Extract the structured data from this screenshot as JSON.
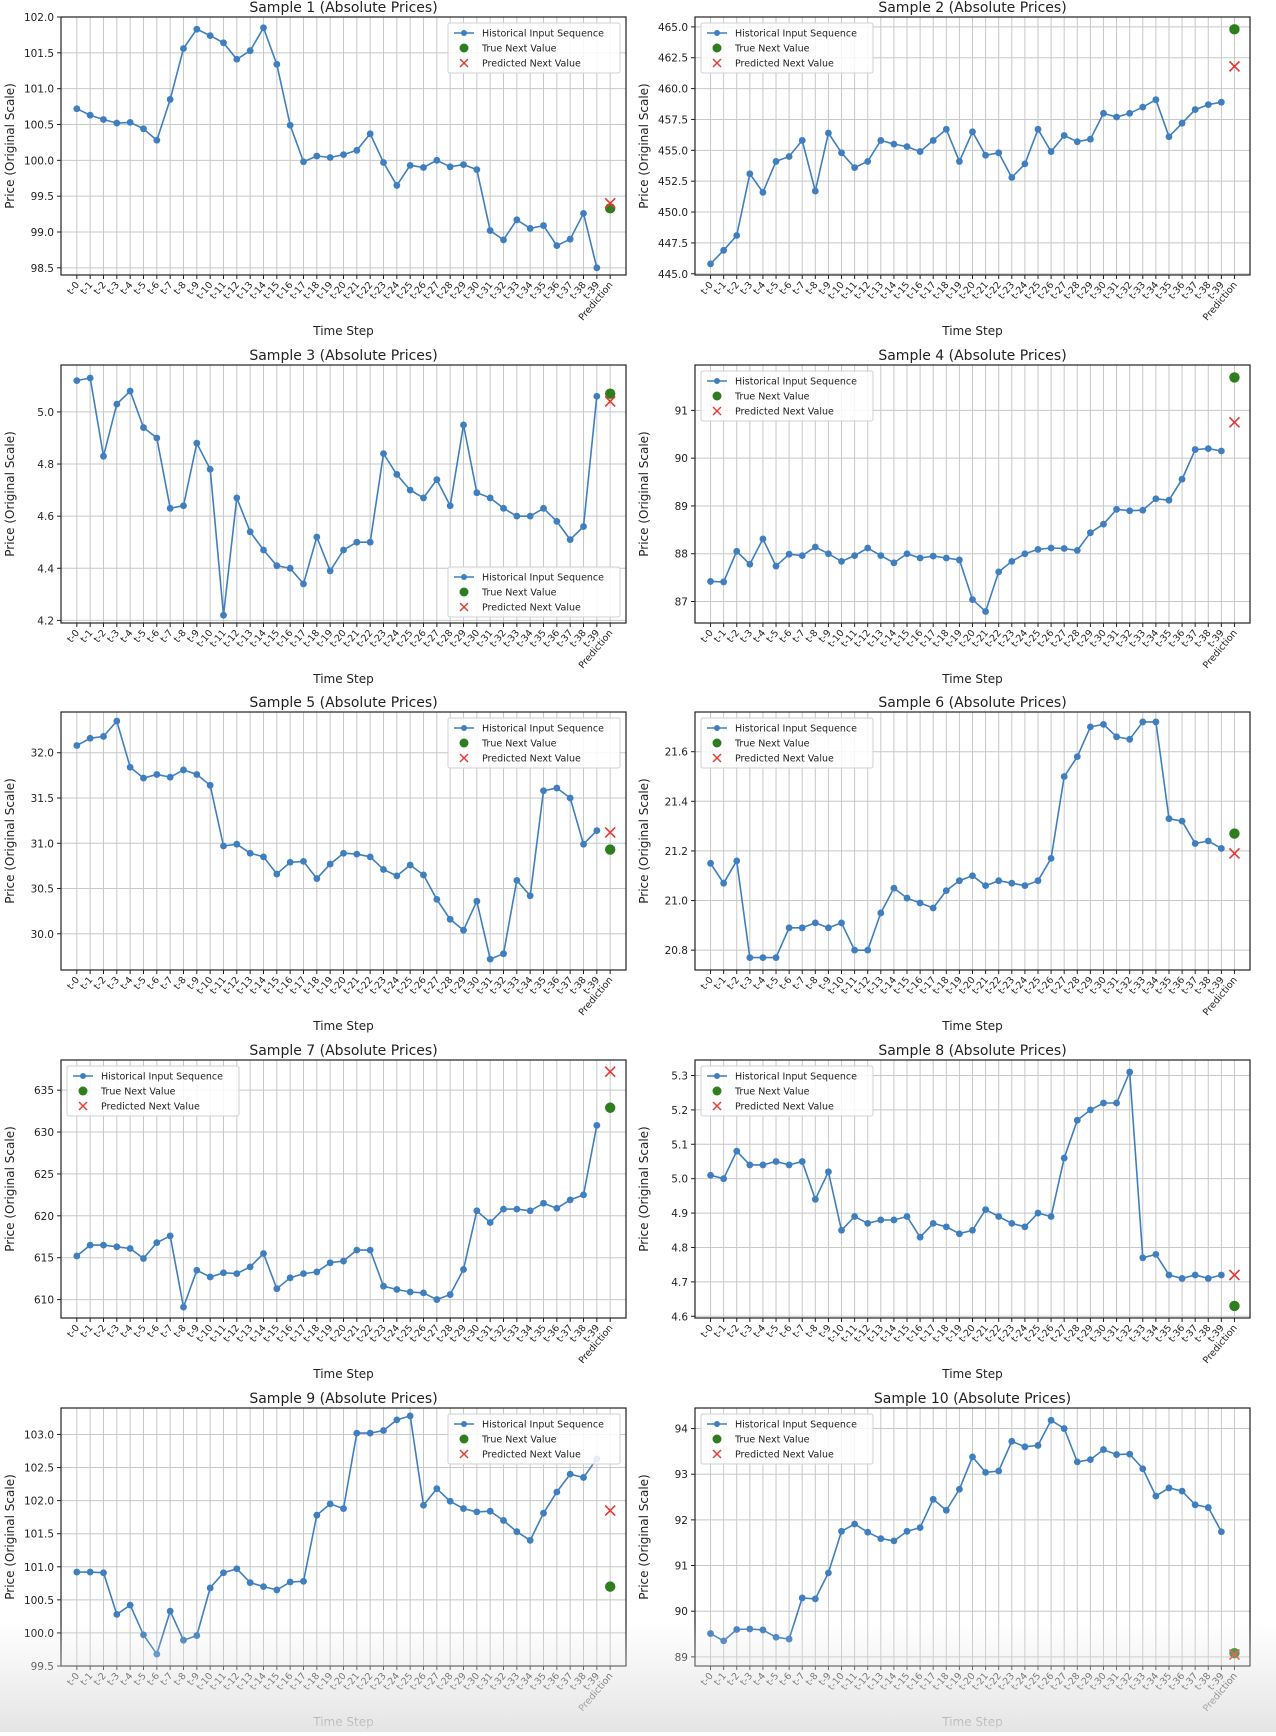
{
  "figure": {
    "xlabel": "Time Step",
    "ylabel": "Price (Original Scale)",
    "x_tick_labels": [
      "t-0",
      "t-1",
      "t-2",
      "t-3",
      "t-4",
      "t-5",
      "t-6",
      "t-7",
      "t-8",
      "t-9",
      "t-10",
      "t-11",
      "t-12",
      "t-13",
      "t-14",
      "t-15",
      "t-16",
      "t-17",
      "t-18",
      "t-19",
      "t-20",
      "t-21",
      "t-22",
      "t-23",
      "t-24",
      "t-25",
      "t-26",
      "t-27",
      "t-28",
      "t-29",
      "t-30",
      "t-31",
      "t-32",
      "t-33",
      "t-34",
      "t-35",
      "t-36",
      "t-37",
      "t-38",
      "t-39",
      "Prediction"
    ],
    "legend": {
      "historical": "Historical Input Sequence",
      "true": "True Next Value",
      "predicted": "Predicted Next Value"
    },
    "colors": {
      "line": "#3f7fbf",
      "true": "#2e7d1e",
      "predicted": "#e53935"
    }
  },
  "chart_data": [
    {
      "type": "line",
      "title": "Sample 1 (Absolute Prices)",
      "ylim": [
        98.4,
        102.0
      ],
      "yticks": [
        98.5,
        99.0,
        99.5,
        100.0,
        100.5,
        101.0,
        101.5,
        102.0
      ],
      "tick_fmt": 1,
      "legend": "top-right",
      "values": [
        100.72,
        100.63,
        100.57,
        100.52,
        100.53,
        100.44,
        100.28,
        100.85,
        101.56,
        101.83,
        101.74,
        101.64,
        101.41,
        101.53,
        101.85,
        101.34,
        100.49,
        99.98,
        100.06,
        100.04,
        100.08,
        100.14,
        100.37,
        99.97,
        99.65,
        99.93,
        99.9,
        100.0,
        99.91,
        99.94,
        99.87,
        99.02,
        98.89,
        99.17,
        99.05,
        99.09,
        98.81,
        98.9,
        99.26,
        98.5
      ],
      "true_next": 99.33,
      "predicted_next": 99.4
    },
    {
      "type": "line",
      "title": "Sample 2 (Absolute Prices)",
      "ylim": [
        444.9,
        465.8
      ],
      "yticks": [
        445.0,
        447.5,
        450.0,
        452.5,
        455.0,
        457.5,
        460.0,
        462.5,
        465.0
      ],
      "tick_fmt": 1,
      "legend": "top-left",
      "values": [
        445.8,
        446.9,
        448.1,
        453.1,
        451.6,
        454.1,
        454.5,
        455.8,
        451.7,
        456.4,
        454.8,
        453.6,
        454.1,
        455.8,
        455.5,
        455.3,
        454.9,
        455.8,
        456.7,
        454.1,
        456.5,
        454.6,
        454.8,
        452.8,
        453.9,
        456.7,
        454.9,
        456.2,
        455.7,
        455.9,
        458.0,
        457.7,
        458.0,
        458.5,
        459.1,
        456.1,
        457.2,
        458.3,
        458.7,
        458.9
      ],
      "true_next": 464.8,
      "predicted_next": 461.8
    },
    {
      "type": "line",
      "title": "Sample 3 (Absolute Prices)",
      "ylim": [
        4.19,
        5.18
      ],
      "yticks": [
        4.2,
        4.4,
        4.6,
        4.8,
        5.0
      ],
      "tick_fmt": 1,
      "legend": "bottom-right",
      "values": [
        5.12,
        5.13,
        4.83,
        5.03,
        5.08,
        4.94,
        4.9,
        4.63,
        4.64,
        4.88,
        4.78,
        4.22,
        4.67,
        4.54,
        4.47,
        4.41,
        4.4,
        4.34,
        4.52,
        4.39,
        4.47,
        4.5,
        4.5,
        4.84,
        4.76,
        4.7,
        4.67,
        4.74,
        4.64,
        4.95,
        4.69,
        4.67,
        4.63,
        4.6,
        4.6,
        4.63,
        4.58,
        4.51,
        4.56,
        5.06
      ],
      "true_next": 5.07,
      "predicted_next": 5.04
    },
    {
      "type": "line",
      "title": "Sample 4 (Absolute Prices)",
      "ylim": [
        86.55,
        91.95
      ],
      "yticks": [
        87,
        88,
        89,
        90,
        91
      ],
      "tick_fmt": 0,
      "legend": "top-left",
      "values": [
        87.42,
        87.41,
        88.05,
        87.78,
        88.31,
        87.74,
        87.99,
        87.96,
        88.14,
        88.0,
        87.84,
        87.96,
        88.12,
        87.96,
        87.81,
        88.0,
        87.91,
        87.95,
        87.91,
        87.87,
        87.04,
        86.79,
        87.62,
        87.84,
        88.0,
        88.09,
        88.12,
        88.11,
        88.07,
        88.44,
        88.62,
        88.93,
        88.9,
        88.91,
        89.15,
        89.12,
        89.56,
        90.18,
        90.2,
        90.15
      ],
      "true_next": 91.69,
      "predicted_next": 90.75
    },
    {
      "type": "line",
      "title": "Sample 5 (Absolute Prices)",
      "ylim": [
        29.6,
        32.45
      ],
      "yticks": [
        30.0,
        30.5,
        31.0,
        31.5,
        32.0
      ],
      "tick_fmt": 1,
      "legend": "top-right",
      "values": [
        32.08,
        32.16,
        32.18,
        32.35,
        31.84,
        31.72,
        31.76,
        31.73,
        31.81,
        31.76,
        31.64,
        30.97,
        30.99,
        30.89,
        30.85,
        30.66,
        30.79,
        30.8,
        30.61,
        30.77,
        30.89,
        30.88,
        30.85,
        30.71,
        30.64,
        30.76,
        30.65,
        30.38,
        30.16,
        30.04,
        30.36,
        29.72,
        29.78,
        30.59,
        30.42,
        31.58,
        31.61,
        31.5,
        30.99,
        31.14
      ],
      "true_next": 30.93,
      "predicted_next": 31.12
    },
    {
      "type": "line",
      "title": "Sample 6 (Absolute Prices)",
      "ylim": [
        20.72,
        21.76
      ],
      "yticks": [
        20.8,
        21.0,
        21.2,
        21.4,
        21.6
      ],
      "tick_fmt": 1,
      "legend": "top-left",
      "values": [
        21.15,
        21.07,
        21.16,
        20.77,
        20.77,
        20.77,
        20.89,
        20.89,
        20.91,
        20.89,
        20.91,
        20.8,
        20.8,
        20.95,
        21.05,
        21.01,
        20.99,
        20.97,
        21.04,
        21.08,
        21.1,
        21.06,
        21.08,
        21.07,
        21.06,
        21.08,
        21.17,
        21.5,
        21.58,
        21.7,
        21.71,
        21.66,
        21.65,
        21.72,
        21.72,
        21.33,
        21.32,
        21.23,
        21.24,
        21.21
      ],
      "true_next": 21.27,
      "predicted_next": 21.19
    },
    {
      "type": "line",
      "title": "Sample 7 (Absolute Prices)",
      "ylim": [
        607.8,
        638.6
      ],
      "yticks": [
        610,
        615,
        620,
        625,
        630,
        635
      ],
      "tick_fmt": 0,
      "legend": "top-left",
      "values": [
        615.2,
        616.5,
        616.5,
        616.3,
        616.1,
        614.9,
        616.8,
        617.6,
        609.1,
        613.5,
        612.7,
        613.2,
        613.1,
        613.9,
        615.5,
        611.3,
        612.6,
        613.1,
        613.3,
        614.4,
        614.6,
        615.9,
        615.9,
        611.6,
        611.2,
        610.9,
        610.8,
        610.0,
        610.6,
        613.6,
        620.6,
        619.2,
        620.8,
        620.8,
        620.6,
        621.5,
        620.9,
        621.9,
        622.5,
        630.8
      ],
      "true_next": 632.9,
      "predicted_next": 637.2
    },
    {
      "type": "line",
      "title": "Sample 8 (Absolute Prices)",
      "ylim": [
        4.595,
        5.345
      ],
      "yticks": [
        4.6,
        4.7,
        4.8,
        4.9,
        5.0,
        5.1,
        5.2,
        5.3
      ],
      "tick_fmt": 1,
      "legend": "top-left",
      "values": [
        5.01,
        5.0,
        5.08,
        5.04,
        5.04,
        5.05,
        5.04,
        5.05,
        4.94,
        5.02,
        4.85,
        4.89,
        4.87,
        4.88,
        4.88,
        4.89,
        4.83,
        4.87,
        4.86,
        4.84,
        4.85,
        4.91,
        4.89,
        4.87,
        4.86,
        4.9,
        4.89,
        5.06,
        5.17,
        5.2,
        5.22,
        5.22,
        5.31,
        4.77,
        4.78,
        4.72,
        4.71,
        4.72,
        4.71,
        4.72
      ],
      "true_next": 4.63,
      "predicted_next": 4.72
    },
    {
      "type": "line",
      "title": "Sample 9 (Absolute Prices)",
      "ylim": [
        99.5,
        103.4
      ],
      "yticks": [
        99.5,
        100.0,
        100.5,
        101.0,
        101.5,
        102.0,
        102.5,
        103.0
      ],
      "tick_fmt": 1,
      "legend": "top-right",
      "values": [
        100.92,
        100.92,
        100.91,
        100.28,
        100.42,
        99.97,
        99.68,
        100.33,
        99.89,
        99.96,
        100.68,
        100.91,
        100.97,
        100.76,
        100.7,
        100.65,
        100.77,
        100.78,
        101.78,
        101.95,
        101.88,
        103.02,
        103.02,
        103.06,
        103.22,
        103.28,
        101.93,
        102.18,
        101.99,
        101.88,
        101.83,
        101.84,
        101.7,
        101.53,
        101.4,
        101.81,
        102.13,
        102.4,
        102.35,
        102.63
      ],
      "true_next": 100.7,
      "predicted_next": 101.85
    },
    {
      "type": "line",
      "title": "Sample 10 (Absolute Prices)",
      "ylim": [
        88.8,
        94.45
      ],
      "yticks": [
        89,
        90,
        91,
        92,
        93,
        94
      ],
      "tick_fmt": 0,
      "legend": "top-left",
      "values": [
        89.51,
        89.35,
        89.6,
        89.61,
        89.59,
        89.43,
        89.39,
        90.29,
        90.27,
        90.84,
        91.75,
        91.91,
        91.73,
        91.59,
        91.54,
        91.75,
        91.83,
        92.45,
        92.21,
        92.67,
        93.38,
        93.04,
        93.07,
        93.72,
        93.6,
        93.63,
        94.18,
        94.0,
        93.27,
        93.32,
        93.54,
        93.43,
        93.44,
        93.12,
        92.52,
        92.7,
        92.63,
        92.33,
        92.27,
        91.74
      ],
      "true_next": 89.08,
      "predicted_next": 89.05
    }
  ]
}
